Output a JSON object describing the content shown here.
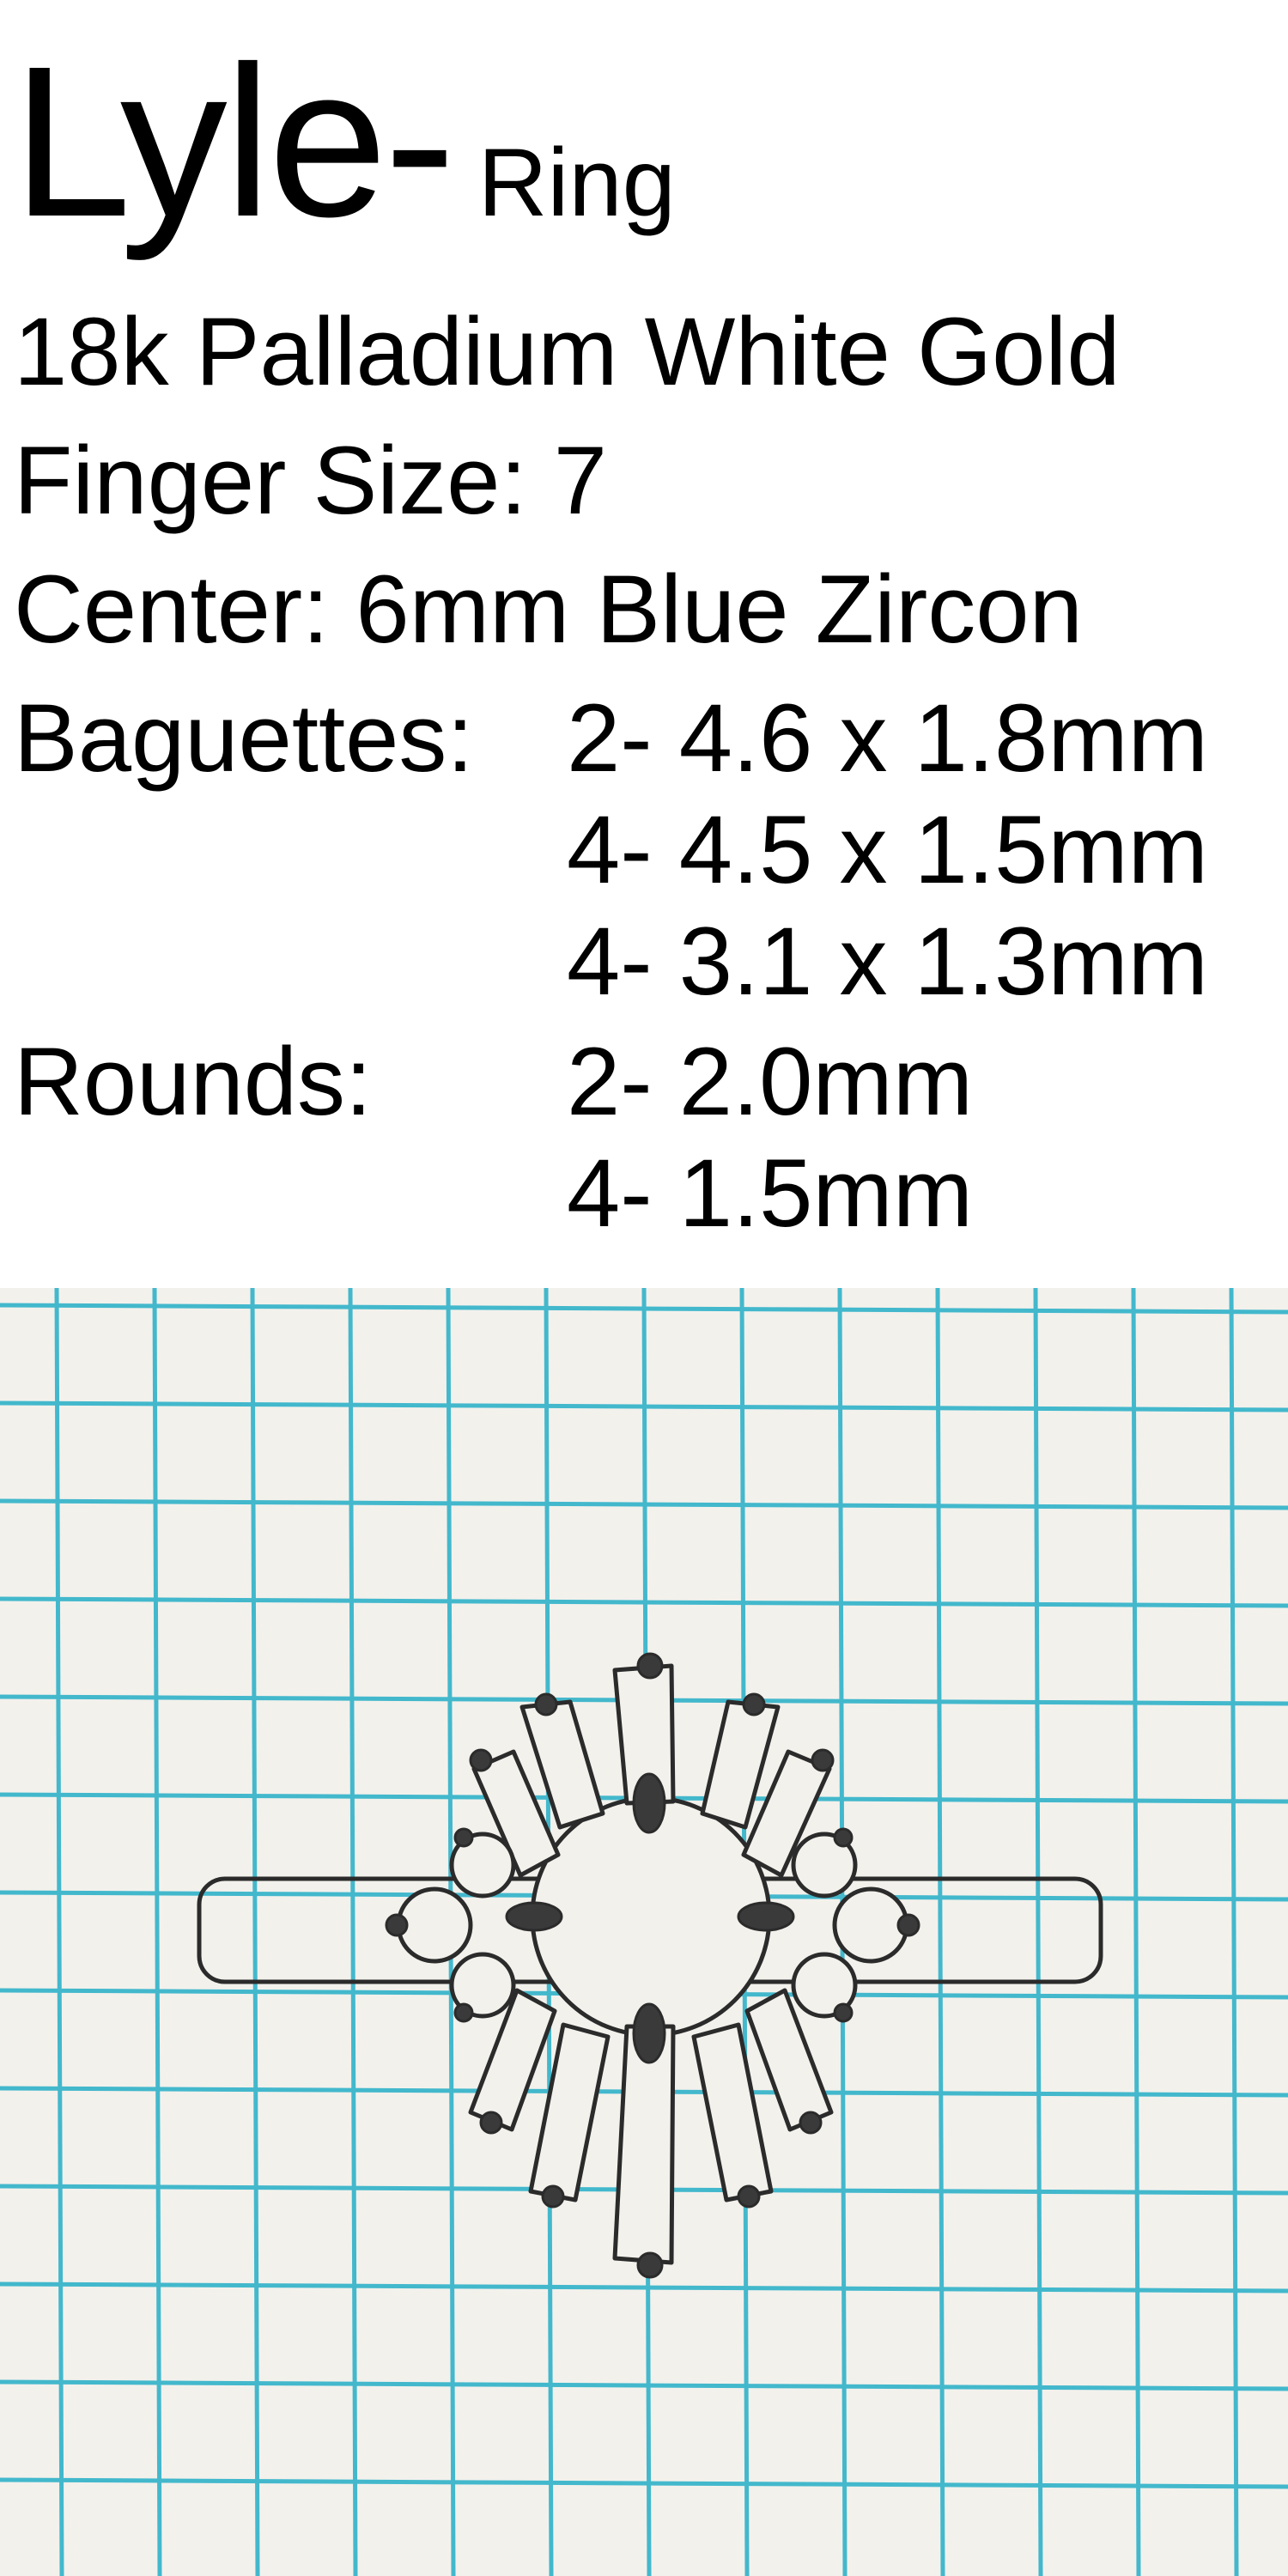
{
  "title": {
    "name": "Lyle-",
    "item_type": "Ring"
  },
  "specs": {
    "metal": "18k Palladium White Gold",
    "finger_size": "Finger Size: 7",
    "center": "Center: 6mm Blue Zircon",
    "baguettes": {
      "label": "Baguettes:",
      "items": [
        "2- 4.6 x 1.8mm",
        "4- 4.5 x 1.5mm",
        "4- 3.1 x 1.3mm"
      ]
    },
    "rounds": {
      "label": "Rounds:",
      "items": [
        "2- 2.0mm",
        "4- 1.5mm"
      ]
    }
  },
  "colors": {
    "grid_line": "#43b8cc",
    "paper": "#f3f1ec",
    "pencil": "#2b2b2b"
  }
}
